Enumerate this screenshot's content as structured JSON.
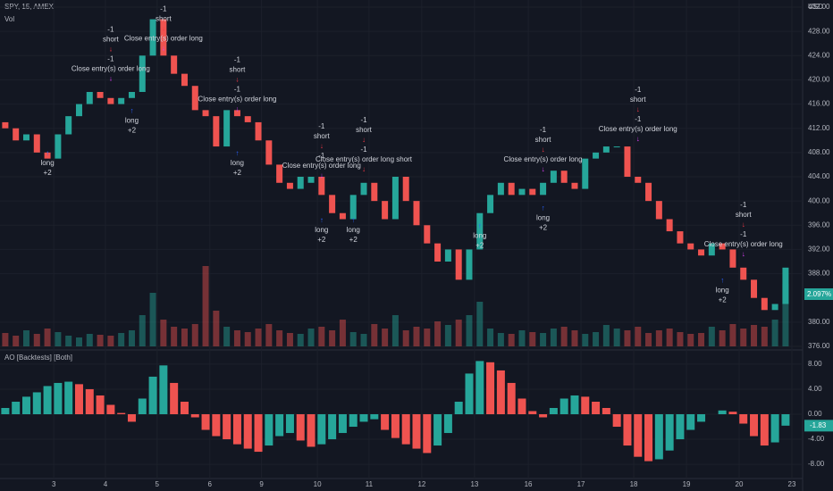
{
  "chart_data": [
    {
      "type": "candlestick",
      "title": "SPY, 15, AMEX",
      "subtitle": "Vol",
      "y_axis_label": "USD",
      "up_color": "#26a69a",
      "down_color": "#ef5350",
      "open": [
        413,
        412,
        410,
        411,
        408,
        407,
        411,
        414,
        416,
        418,
        417,
        416,
        417,
        418,
        424,
        430,
        424,
        421,
        419,
        415,
        414,
        409,
        415,
        414,
        413,
        410,
        406,
        403,
        402,
        403,
        404,
        401,
        398,
        397,
        401,
        403,
        400,
        397,
        404,
        400,
        396,
        393,
        390,
        392,
        387,
        392,
        398,
        401,
        403,
        401,
        402,
        401,
        403,
        405,
        403,
        402,
        407,
        408,
        409,
        409,
        404,
        403,
        400,
        397,
        395,
        393,
        392,
        391,
        393,
        392,
        389,
        387,
        384,
        382,
        383
      ],
      "close": [
        412,
        410,
        411,
        408,
        407,
        411,
        414,
        416,
        418,
        417,
        416,
        417,
        418,
        424,
        430,
        424,
        421,
        419,
        415,
        414,
        409,
        415,
        414,
        413,
        410,
        406,
        403,
        402,
        404,
        404,
        401,
        398,
        397,
        401,
        403,
        400,
        397,
        404,
        400,
        396,
        393,
        390,
        392,
        387,
        392,
        398,
        401,
        403,
        401,
        402,
        401,
        403,
        405,
        403,
        402,
        407,
        408,
        409,
        409,
        404,
        403,
        400,
        397,
        395,
        393,
        392,
        391,
        393,
        392,
        389,
        387,
        384,
        382,
        383,
        389
      ],
      "volume": [
        15,
        12,
        18,
        14,
        20,
        16,
        12,
        10,
        14,
        13,
        12,
        15,
        18,
        35,
        60,
        30,
        22,
        20,
        25,
        90,
        40,
        22,
        18,
        16,
        20,
        25,
        18,
        15,
        14,
        20,
        22,
        18,
        30,
        16,
        14,
        25,
        20,
        35,
        18,
        22,
        20,
        28,
        24,
        30,
        35,
        50,
        20,
        15,
        14,
        18,
        16,
        15,
        20,
        22,
        18,
        14,
        16,
        24,
        20,
        18,
        22,
        15,
        18,
        20,
        16,
        14,
        15,
        22,
        18,
        25,
        20,
        24,
        22,
        30,
        70
      ],
      "volume_ylim": [
        0,
        100
      ],
      "ylim": [
        376,
        432
      ],
      "yticks": [
        {
          "value": 432,
          "label": "432.00"
        },
        {
          "value": 428,
          "label": "428.00"
        },
        {
          "value": 424,
          "label": "424.00"
        },
        {
          "value": 420,
          "label": "420.00"
        },
        {
          "value": 416,
          "label": "416.00"
        },
        {
          "value": 412,
          "label": "412.00"
        },
        {
          "value": 408,
          "label": "408.00"
        },
        {
          "value": 404,
          "label": "404.00"
        },
        {
          "value": 400,
          "label": "400.00"
        },
        {
          "value": 396,
          "label": "396.00"
        },
        {
          "value": 392,
          "label": "392.00"
        },
        {
          "value": 388,
          "label": "388.00"
        },
        {
          "value": 380,
          "label": "380.00"
        },
        {
          "value": 376,
          "label": "376.00"
        }
      ],
      "xlim": [
        -0.5,
        74.6
      ],
      "xticks": [
        {
          "value": 4.6,
          "label": "3"
        },
        {
          "value": 9.5,
          "label": "4"
        },
        {
          "value": 14.4,
          "label": "5"
        },
        {
          "value": 19.4,
          "label": "6"
        },
        {
          "value": 24.3,
          "label": "9"
        },
        {
          "value": 29.6,
          "label": "10"
        },
        {
          "value": 34.5,
          "label": "11"
        },
        {
          "value": 39.5,
          "label": "12"
        },
        {
          "value": 44.5,
          "label": "13"
        },
        {
          "value": 49.6,
          "label": "16"
        },
        {
          "value": 54.6,
          "label": "17"
        },
        {
          "value": 59.6,
          "label": "18"
        },
        {
          "value": 64.6,
          "label": "19"
        },
        {
          "value": 69.6,
          "label": "20"
        },
        {
          "value": 74.6,
          "label": "23"
        }
      ],
      "last_label": "2.097%",
      "signals": [
        {
          "x": 10,
          "y": 419,
          "side": "above",
          "items": [
            {
              "text": "-1",
              "color": "#d1d4dc"
            },
            {
              "text": "short",
              "color": "#d1d4dc"
            },
            {
              "text": "↓",
              "color": "#f23645"
            },
            {
              "text": "-1",
              "color": "#d1d4dc"
            },
            {
              "text": "Close entry(s) order long",
              "color": "#d1d4dc"
            },
            {
              "text": "↓",
              "color": "#e040fb"
            }
          ]
        },
        {
          "x": 4,
          "y": 409,
          "side": "below",
          "items": [
            {
              "text": "↑",
              "color": "#2962ff"
            },
            {
              "text": "long",
              "color": "#d1d4dc"
            },
            {
              "text": "+2",
              "color": "#d1d4dc"
            }
          ]
        },
        {
          "x": 12,
          "y": 416,
          "side": "below",
          "items": [
            {
              "text": "↑",
              "color": "#2962ff"
            },
            {
              "text": "long",
              "color": "#d1d4dc"
            },
            {
              "text": "+2",
              "color": "#d1d4dc"
            }
          ]
        },
        {
          "x": 15,
          "y": 424,
          "side": "above",
          "items": [
            {
              "text": "-1",
              "color": "#d1d4dc"
            },
            {
              "text": "short",
              "color": "#d1d4dc"
            },
            {
              "text": "↓",
              "color": "#f23645"
            },
            {
              "text": "Close entry(s) order long",
              "color": "#d1d4dc"
            },
            {
              "text": "↓",
              "color": "#e040fb"
            }
          ]
        },
        {
          "x": 22,
          "y": 414,
          "side": "above",
          "items": [
            {
              "text": "-1",
              "color": "#d1d4dc"
            },
            {
              "text": "short",
              "color": "#d1d4dc"
            },
            {
              "text": "↓",
              "color": "#f23645"
            },
            {
              "text": "-1",
              "color": "#d1d4dc"
            },
            {
              "text": "Close entry(s) order long",
              "color": "#d1d4dc"
            },
            {
              "text": "↓",
              "color": "#e040fb"
            }
          ]
        },
        {
          "x": 22,
          "y": 409,
          "side": "below",
          "items": [
            {
              "text": "↑",
              "color": "#2962ff"
            },
            {
              "text": "long",
              "color": "#d1d4dc"
            },
            {
              "text": "+2",
              "color": "#d1d4dc"
            }
          ]
        },
        {
          "x": 30,
          "y": 403,
          "side": "above",
          "items": [
            {
              "text": "-1",
              "color": "#d1d4dc"
            },
            {
              "text": "short",
              "color": "#d1d4dc"
            },
            {
              "text": "↓",
              "color": "#f23645"
            },
            {
              "text": "-1",
              "color": "#d1d4dc"
            },
            {
              "text": "Close entry(s) order long",
              "color": "#d1d4dc"
            },
            {
              "text": "↓",
              "color": "#e040fb"
            }
          ]
        },
        {
          "x": 30,
          "y": 398,
          "side": "below",
          "items": [
            {
              "text": "↑",
              "color": "#2962ff"
            },
            {
              "text": "long",
              "color": "#d1d4dc"
            },
            {
              "text": "+2",
              "color": "#d1d4dc"
            }
          ]
        },
        {
          "x": 34,
          "y": 404,
          "side": "above",
          "items": [
            {
              "text": "-1",
              "color": "#d1d4dc"
            },
            {
              "text": "short",
              "color": "#d1d4dc"
            },
            {
              "text": "↓",
              "color": "#f23645"
            },
            {
              "text": "-1",
              "color": "#d1d4dc"
            },
            {
              "text": "Close entry(s) order long short",
              "color": "#d1d4dc"
            },
            {
              "text": "↓",
              "color": "#f23645"
            }
          ]
        },
        {
          "x": 33,
          "y": 398,
          "side": "below",
          "items": [
            {
              "text": "↑",
              "color": "#2962ff"
            },
            {
              "text": "long",
              "color": "#d1d4dc"
            },
            {
              "text": "+2",
              "color": "#d1d4dc"
            }
          ]
        },
        {
          "x": 45,
          "y": 397,
          "side": "below",
          "items": [
            {
              "text": "↑",
              "color": "#2962ff"
            },
            {
              "text": "long",
              "color": "#d1d4dc"
            },
            {
              "text": "+2",
              "color": "#d1d4dc"
            }
          ]
        },
        {
          "x": 51,
          "y": 404,
          "side": "above",
          "items": [
            {
              "text": "-1",
              "color": "#d1d4dc"
            },
            {
              "text": "short",
              "color": "#d1d4dc"
            },
            {
              "text": "↓",
              "color": "#f23645"
            },
            {
              "text": "Close entry(s) order long",
              "color": "#d1d4dc"
            },
            {
              "text": "↓",
              "color": "#e040fb"
            }
          ]
        },
        {
          "x": 51,
          "y": 400,
          "side": "below",
          "items": [
            {
              "text": "↑",
              "color": "#2962ff"
            },
            {
              "text": "long",
              "color": "#d1d4dc"
            },
            {
              "text": "+2",
              "color": "#d1d4dc"
            }
          ]
        },
        {
          "x": 60,
          "y": 409,
          "side": "above",
          "items": [
            {
              "text": "-1",
              "color": "#d1d4dc"
            },
            {
              "text": "short",
              "color": "#d1d4dc"
            },
            {
              "text": "↓",
              "color": "#f23645"
            },
            {
              "text": "-1",
              "color": "#d1d4dc"
            },
            {
              "text": "Close entry(s) order long",
              "color": "#d1d4dc"
            },
            {
              "text": "↓",
              "color": "#e040fb"
            }
          ]
        },
        {
          "x": 70,
          "y": 390,
          "side": "above",
          "items": [
            {
              "text": "-1",
              "color": "#d1d4dc"
            },
            {
              "text": "short",
              "color": "#d1d4dc"
            },
            {
              "text": "↓",
              "color": "#f23645"
            },
            {
              "text": "-1",
              "color": "#d1d4dc"
            },
            {
              "text": "Close entry(s) order long",
              "color": "#d1d4dc"
            },
            {
              "text": "↓",
              "color": "#e040fb"
            }
          ]
        },
        {
          "x": 68,
          "y": 388,
          "side": "below",
          "items": [
            {
              "text": "↑",
              "color": "#2962ff"
            },
            {
              "text": "long",
              "color": "#d1d4dc"
            },
            {
              "text": "+2",
              "color": "#d1d4dc"
            }
          ]
        }
      ]
    },
    {
      "type": "bar",
      "title": "AO [Backtests] [Both]",
      "up_color": "#26a69a",
      "down_color": "#ef5350",
      "values": [
        1.0,
        2.0,
        2.8,
        3.5,
        4.5,
        5.0,
        5.2,
        4.8,
        4.0,
        3.0,
        1.5,
        0.2,
        -1.2,
        2.5,
        6.0,
        7.8,
        5.0,
        2.0,
        -0.5,
        -2.5,
        -3.5,
        -4.0,
        -4.8,
        -5.5,
        -6.0,
        -5.0,
        -3.5,
        -3.0,
        -4.2,
        -5.2,
        -4.8,
        -4.0,
        -3.0,
        -2.0,
        -1.2,
        -0.8,
        -2.5,
        -3.8,
        -4.8,
        -5.5,
        -6.2,
        -5.0,
        -3.0,
        2.0,
        6.5,
        8.5,
        8.3,
        7.0,
        5.0,
        2.5,
        0.5,
        -0.5,
        1.0,
        2.5,
        3.0,
        2.8,
        2.0,
        1.0,
        -2.0,
        -5.0,
        -6.8,
        -7.5,
        -7.2,
        -5.8,
        -4.0,
        -2.5,
        -1.2,
        0.0,
        0.6,
        0.4,
        -1.5,
        -3.5,
        -5.0,
        -4.5,
        -1.83
      ],
      "last_value_label": "-1.83",
      "ylim": [
        -9.7,
        9.7
      ],
      "yticks": [
        {
          "value": 8,
          "label": "8.00"
        },
        {
          "value": 4,
          "label": "4.00"
        },
        {
          "value": 0,
          "label": "0.00"
        },
        {
          "value": -4,
          "label": "-4.00"
        },
        {
          "value": -8,
          "label": "-8.00"
        }
      ],
      "xlim": [
        -0.5,
        74.6
      ]
    }
  ]
}
